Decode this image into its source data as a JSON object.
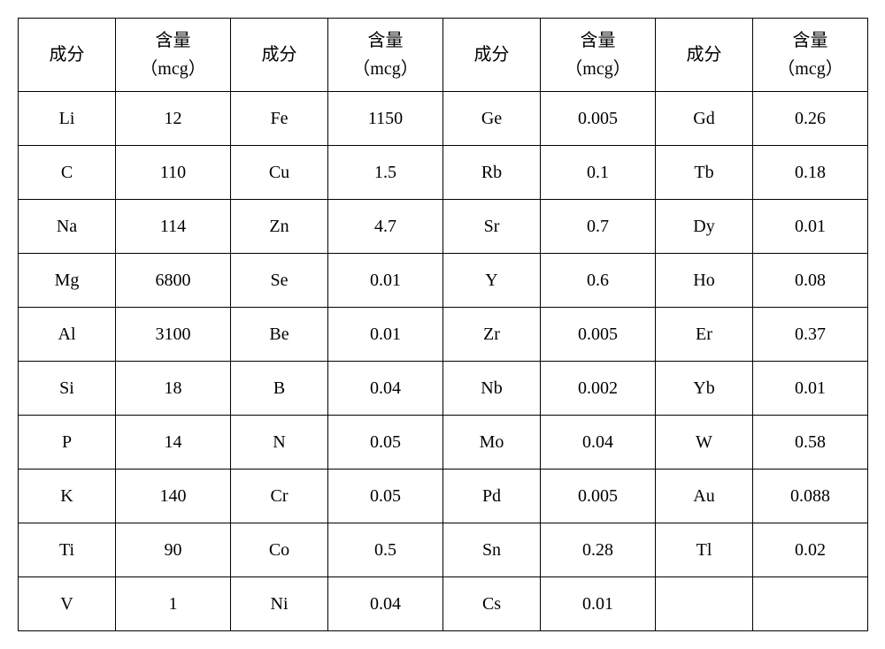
{
  "table": {
    "header": {
      "component": "成分",
      "amount_line1": "含量",
      "amount_line2": "（mcg）"
    },
    "groups": 4,
    "border_color": "#000000",
    "background_color": "#ffffff",
    "fontsize": 20,
    "columns": [
      [
        {
          "c": "Li",
          "v": "12"
        },
        {
          "c": "C",
          "v": "110"
        },
        {
          "c": "Na",
          "v": "114"
        },
        {
          "c": "Mg",
          "v": "6800"
        },
        {
          "c": "Al",
          "v": "3100"
        },
        {
          "c": "Si",
          "v": "18"
        },
        {
          "c": "P",
          "v": "14"
        },
        {
          "c": "K",
          "v": "140"
        },
        {
          "c": "Ti",
          "v": "90"
        },
        {
          "c": "V",
          "v": "1"
        }
      ],
      [
        {
          "c": "Fe",
          "v": "1150"
        },
        {
          "c": "Cu",
          "v": "1.5"
        },
        {
          "c": "Zn",
          "v": "4.7"
        },
        {
          "c": "Se",
          "v": "0.01"
        },
        {
          "c": "Be",
          "v": "0.01"
        },
        {
          "c": "B",
          "v": "0.04"
        },
        {
          "c": "N",
          "v": "0.05"
        },
        {
          "c": "Cr",
          "v": "0.05"
        },
        {
          "c": "Co",
          "v": "0.5"
        },
        {
          "c": "Ni",
          "v": "0.04"
        }
      ],
      [
        {
          "c": "Ge",
          "v": "0.005"
        },
        {
          "c": "Rb",
          "v": "0.1"
        },
        {
          "c": "Sr",
          "v": "0.7"
        },
        {
          "c": "Y",
          "v": "0.6"
        },
        {
          "c": "Zr",
          "v": "0.005"
        },
        {
          "c": "Nb",
          "v": "0.002"
        },
        {
          "c": "Mo",
          "v": "0.04"
        },
        {
          "c": "Pd",
          "v": "0.005"
        },
        {
          "c": "Sn",
          "v": "0.28"
        },
        {
          "c": "Cs",
          "v": "0.01"
        }
      ],
      [
        {
          "c": "Gd",
          "v": "0.26"
        },
        {
          "c": "Tb",
          "v": "0.18"
        },
        {
          "c": "Dy",
          "v": "0.01"
        },
        {
          "c": "Ho",
          "v": "0.08"
        },
        {
          "c": "Er",
          "v": "0.37"
        },
        {
          "c": "Yb",
          "v": "0.01"
        },
        {
          "c": "W",
          "v": "0.58"
        },
        {
          "c": "Au",
          "v": "0.088"
        },
        {
          "c": "Tl",
          "v": "0.02"
        },
        {
          "c": "",
          "v": ""
        }
      ]
    ]
  }
}
